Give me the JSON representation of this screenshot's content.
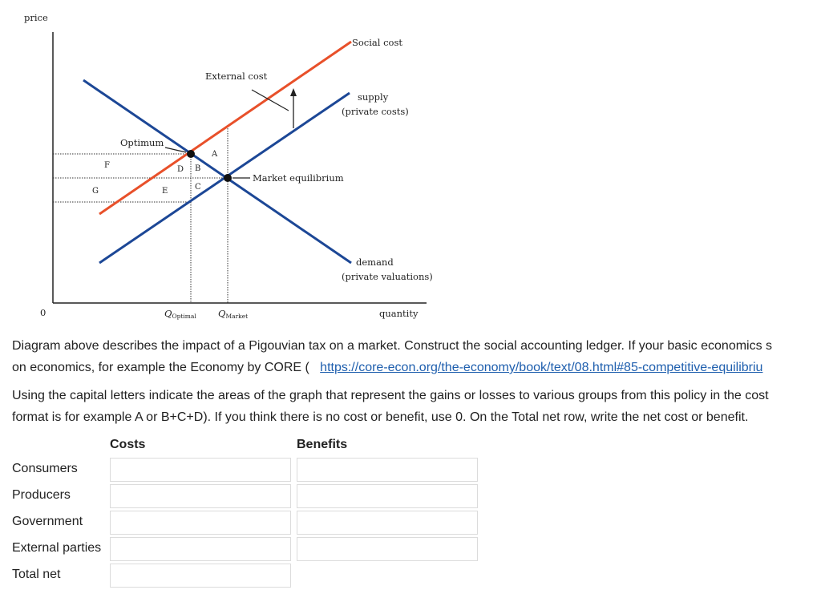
{
  "diagram": {
    "y_axis_label": "price",
    "origin_label": "0",
    "x_axis_label": "quantity",
    "curves": {
      "social_cost": {
        "label": "Social cost",
        "color": "#e8502a"
      },
      "supply": {
        "label_line1": "supply",
        "label_line2": "(private costs)",
        "color": "#1c4796"
      },
      "demand": {
        "label_line1": "demand",
        "label_line2": "(private valuations)",
        "color": "#1c4796"
      }
    },
    "annotations": {
      "external_cost": "External cost",
      "optimum": "Optimum",
      "market_equilibrium": "Market equilibrium"
    },
    "areas": {
      "A": "A",
      "B": "B",
      "C": "C",
      "D": "D",
      "E": "E",
      "F": "F",
      "G": "G"
    },
    "q_optimal": {
      "base": "Q",
      "sub": "Optimal"
    },
    "q_market": {
      "base": "Q",
      "sub": "Market"
    }
  },
  "question": {
    "para1_line1": "Diagram above describes the impact of a Pigouvian tax on a market. Construct the social accounting ledger. If your basic economics s",
    "para1_line2_prefix": "on economics, for example the Economy by CORE (",
    "link_text": "https://core-econ.org/the-economy/book/text/08.html#85-competitive-equilibriu",
    "para2_line1": "Using the capital letters indicate the areas of the graph that represent the gains or losses to various groups from this policy in the cost",
    "para2_line2": "format is for example A or B+C+D). If you think there is no cost or benefit, use 0. On the Total net row, write the net cost or benefit."
  },
  "ledger": {
    "costs_header": "Costs",
    "benefits_header": "Benefits",
    "rows": [
      {
        "label": "Consumers",
        "cost": "",
        "benefit": ""
      },
      {
        "label": "Producers",
        "cost": "",
        "benefit": ""
      },
      {
        "label": "Government",
        "cost": "",
        "benefit": ""
      },
      {
        "label": "External parties",
        "cost": "",
        "benefit": ""
      },
      {
        "label": "Total net",
        "cost": ""
      }
    ]
  }
}
